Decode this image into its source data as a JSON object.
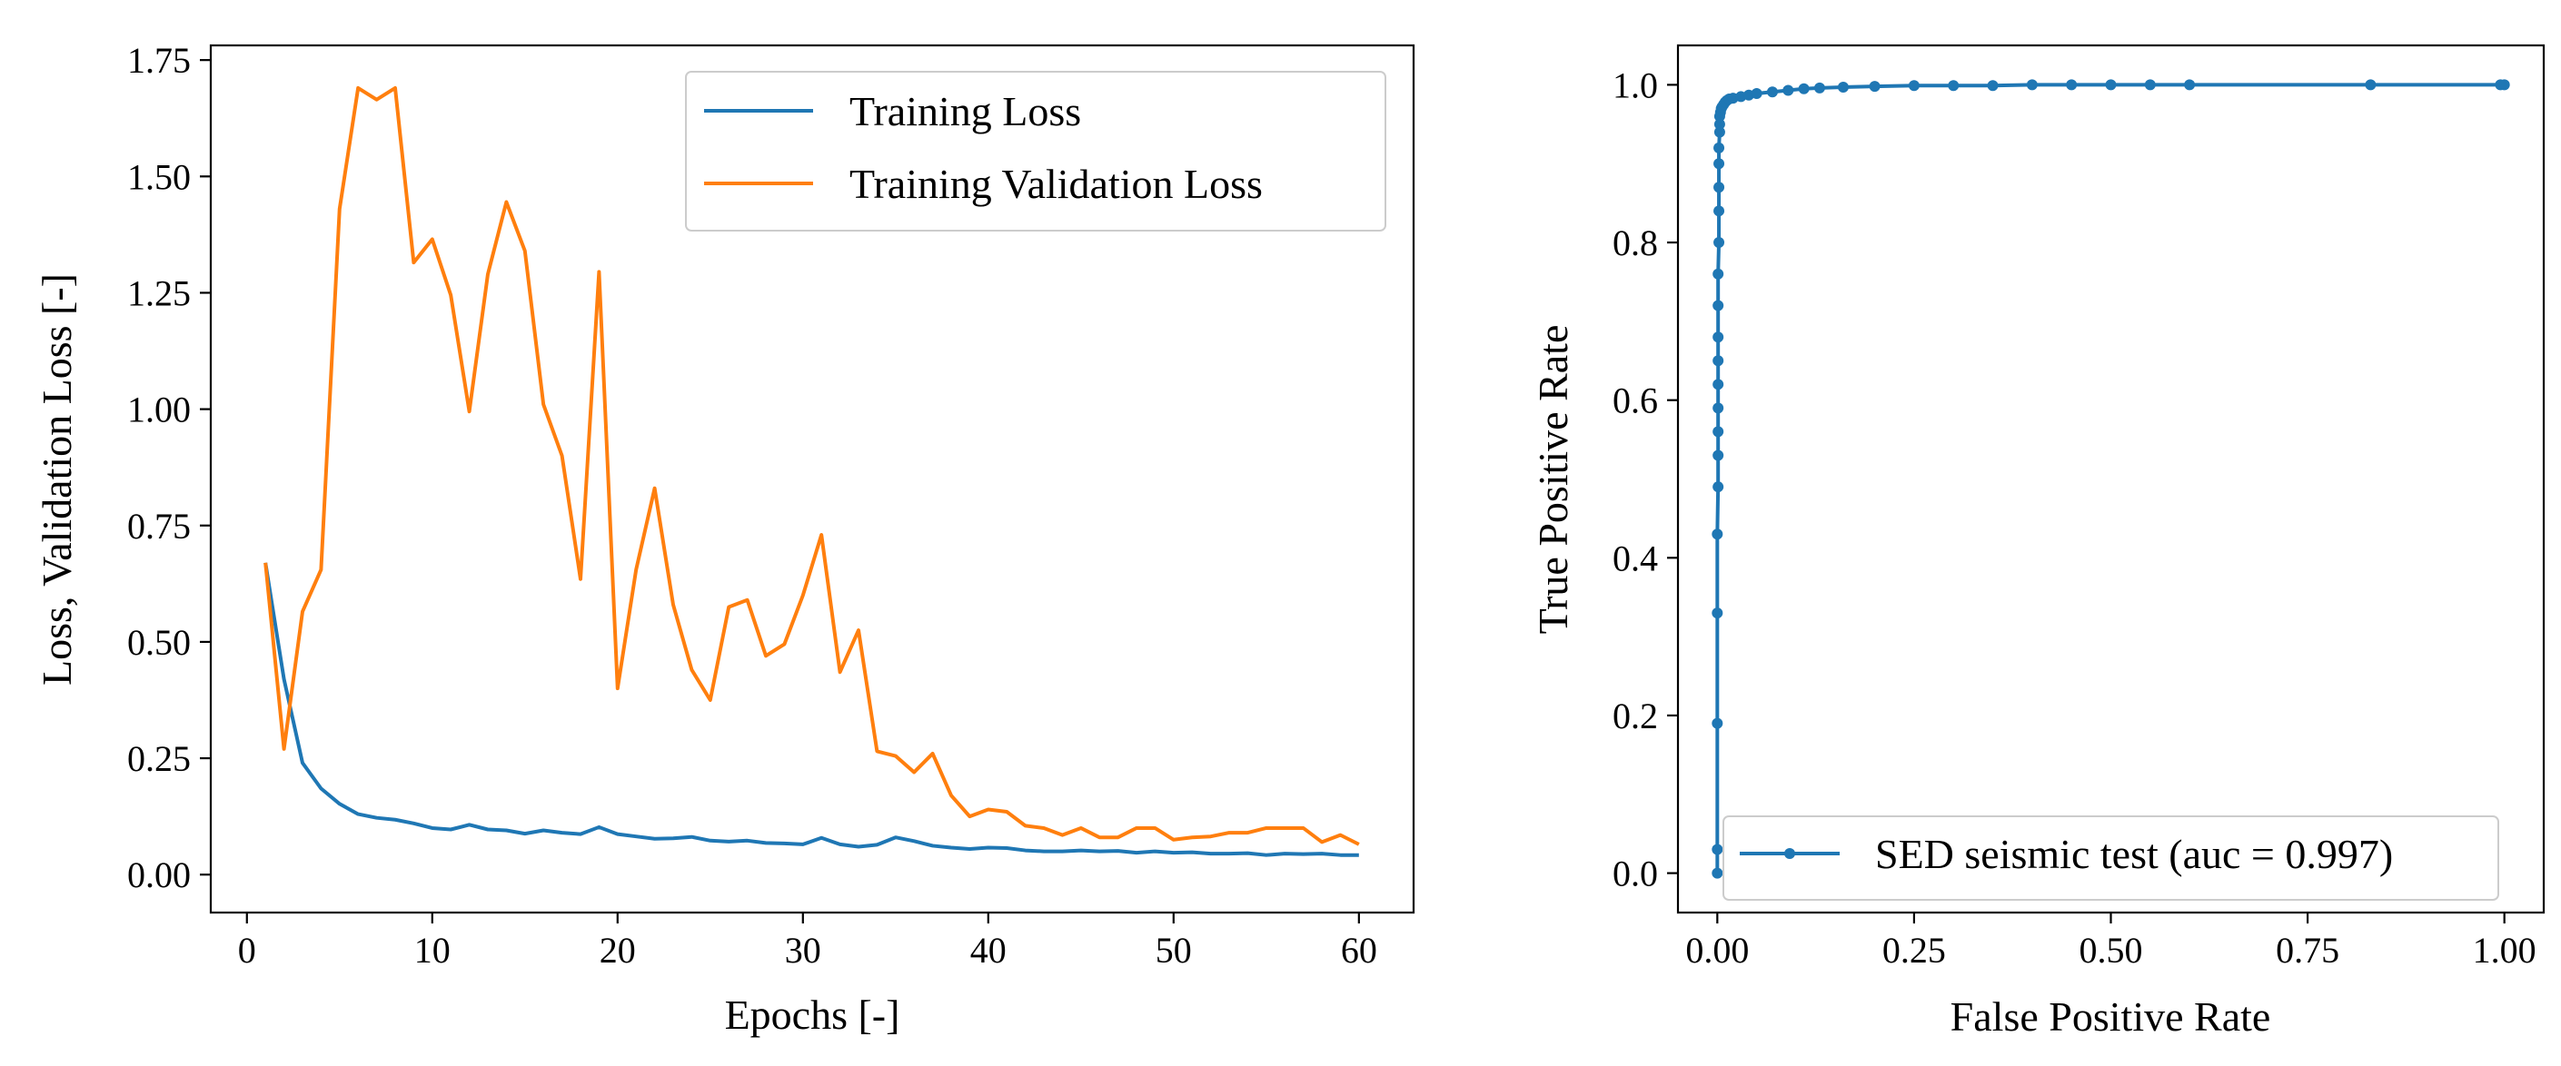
{
  "colors": {
    "train": "#1f77b4",
    "val": "#ff7f0e",
    "roc": "#1f77b4",
    "axis": "#000000"
  },
  "chart_data": [
    {
      "type": "line",
      "title": "",
      "xlabel": "Epochs [-]",
      "ylabel": "Loss, Validation Loss [-]",
      "xlim": [
        -1.95,
        62.95
      ],
      "ylim": [
        -0.0815,
        1.7815
      ],
      "xticks": [
        0,
        10,
        20,
        30,
        40,
        50,
        60
      ],
      "xtick_labels": [
        "0",
        "10",
        "20",
        "30",
        "40",
        "50",
        "60"
      ],
      "yticks": [
        0.0,
        0.25,
        0.5,
        0.75,
        1.0,
        1.25,
        1.5,
        1.75
      ],
      "ytick_labels": [
        "0.00",
        "0.25",
        "0.50",
        "0.75",
        "1.00",
        "1.25",
        "1.50",
        "1.75"
      ],
      "legend_position": "top-right",
      "x": [
        1,
        2,
        3,
        4,
        5,
        6,
        7,
        8,
        9,
        10,
        11,
        12,
        13,
        14,
        15,
        16,
        17,
        18,
        19,
        20,
        21,
        22,
        23,
        24,
        25,
        26,
        27,
        28,
        29,
        30,
        31,
        32,
        33,
        34,
        35,
        36,
        37,
        38,
        39,
        40,
        41,
        42,
        43,
        44,
        45,
        46,
        47,
        48,
        49,
        50,
        51,
        52,
        53,
        54,
        55,
        56,
        57,
        58,
        59,
        60
      ],
      "series": [
        {
          "name": "Training Loss",
          "color_key": "train",
          "values": [
            0.67,
            0.42,
            0.24,
            0.185,
            0.152,
            0.13,
            0.122,
            0.118,
            0.11,
            0.1,
            0.097,
            0.107,
            0.097,
            0.095,
            0.088,
            0.095,
            0.09,
            0.087,
            0.102,
            0.087,
            0.082,
            0.077,
            0.078,
            0.081,
            0.073,
            0.071,
            0.073,
            0.068,
            0.067,
            0.065,
            0.079,
            0.065,
            0.06,
            0.064,
            0.08,
            0.072,
            0.062,
            0.058,
            0.055,
            0.058,
            0.057,
            0.052,
            0.05,
            0.05,
            0.052,
            0.05,
            0.051,
            0.047,
            0.05,
            0.047,
            0.048,
            0.045,
            0.045,
            0.046,
            0.042,
            0.045,
            0.044,
            0.045,
            0.042,
            0.042
          ]
        },
        {
          "name": "Training Validation Loss",
          "color_key": "val",
          "values": [
            0.67,
            0.27,
            0.565,
            0.655,
            1.43,
            1.69,
            1.665,
            1.69,
            1.315,
            1.365,
            1.245,
            0.995,
            1.29,
            1.445,
            1.34,
            1.01,
            0.9,
            0.635,
            1.295,
            0.4,
            0.655,
            0.83,
            0.58,
            0.44,
            0.375,
            0.575,
            0.59,
            0.47,
            0.495,
            0.6,
            0.73,
            0.435,
            0.525,
            0.265,
            0.255,
            0.22,
            0.26,
            0.17,
            0.125,
            0.14,
            0.135,
            0.105,
            0.1,
            0.085,
            0.1,
            0.08,
            0.08,
            0.1,
            0.1,
            0.075,
            0.08,
            0.082,
            0.09,
            0.09,
            0.1,
            0.1,
            0.1,
            0.07,
            0.085,
            0.065
          ]
        }
      ]
    },
    {
      "type": "line",
      "title": "",
      "xlabel": "False Positive Rate",
      "ylabel": "True Positive Rate",
      "xlim": [
        -0.05,
        1.05
      ],
      "ylim": [
        -0.05,
        1.05
      ],
      "xticks": [
        0.0,
        0.25,
        0.5,
        0.75,
        1.0
      ],
      "xtick_labels": [
        "0.00",
        "0.25",
        "0.50",
        "0.75",
        "1.00"
      ],
      "yticks": [
        0.0,
        0.2,
        0.4,
        0.6,
        0.8,
        1.0
      ],
      "ytick_labels": [
        "0.0",
        "0.2",
        "0.4",
        "0.6",
        "0.8",
        "1.0"
      ],
      "legend_position": "bottom-right",
      "series": [
        {
          "name": "SED seismic test (auc = 0.997)",
          "color_key": "roc",
          "markers": true,
          "x": [
            0,
            0,
            0,
            0,
            0,
            0.001,
            0.001,
            0.001,
            0.001,
            0.001,
            0.001,
            0.001,
            0.001,
            0.001,
            0.002,
            0.002,
            0.002,
            0.002,
            0.002,
            0.003,
            0.003,
            0.003,
            0.004,
            0.005,
            0.006,
            0.008,
            0.01,
            0.012,
            0.015,
            0.02,
            0.03,
            0.04,
            0.05,
            0.07,
            0.09,
            0.11,
            0.13,
            0.16,
            0.2,
            0.25,
            0.3,
            0.35,
            0.4,
            0.45,
            0.5,
            0.55,
            0.6,
            0.83,
            0.995,
            1.0
          ],
          "y": [
            0,
            0.03,
            0.19,
            0.33,
            0.43,
            0.49,
            0.53,
            0.56,
            0.59,
            0.62,
            0.65,
            0.68,
            0.72,
            0.76,
            0.8,
            0.84,
            0.87,
            0.9,
            0.92,
            0.94,
            0.95,
            0.96,
            0.965,
            0.97,
            0.972,
            0.975,
            0.978,
            0.98,
            0.982,
            0.983,
            0.985,
            0.987,
            0.989,
            0.991,
            0.993,
            0.995,
            0.996,
            0.997,
            0.998,
            0.999,
            0.999,
            0.999,
            1.0,
            1.0,
            1.0,
            1.0,
            1.0,
            1.0,
            1.0,
            1.0
          ]
        }
      ]
    }
  ]
}
